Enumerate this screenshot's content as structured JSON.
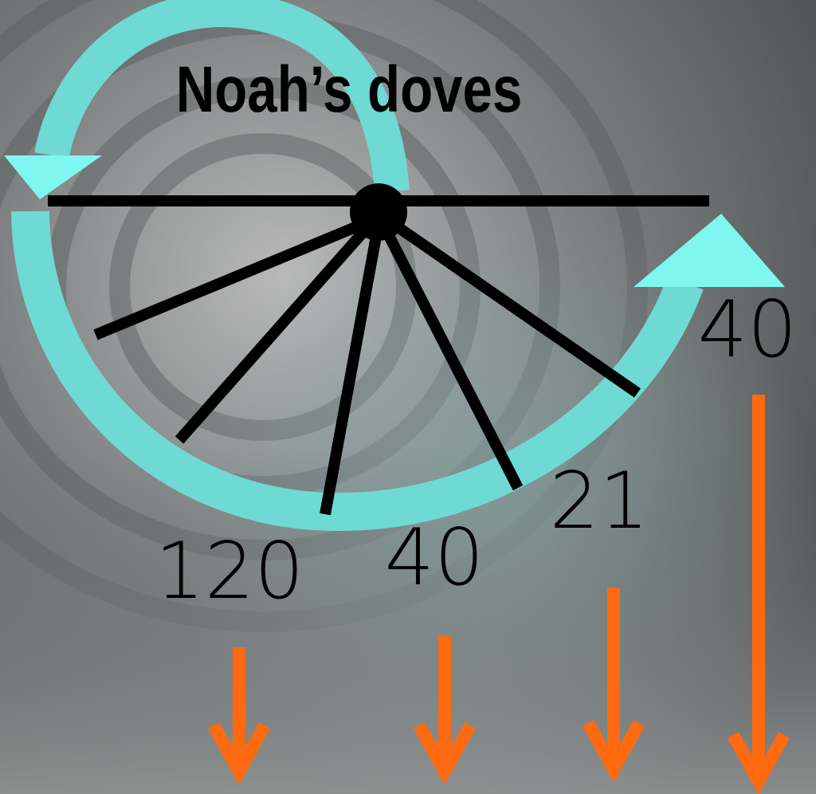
{
  "title": "Noah’s doves",
  "labels": [
    "120",
    "40",
    "21",
    "40"
  ]
}
